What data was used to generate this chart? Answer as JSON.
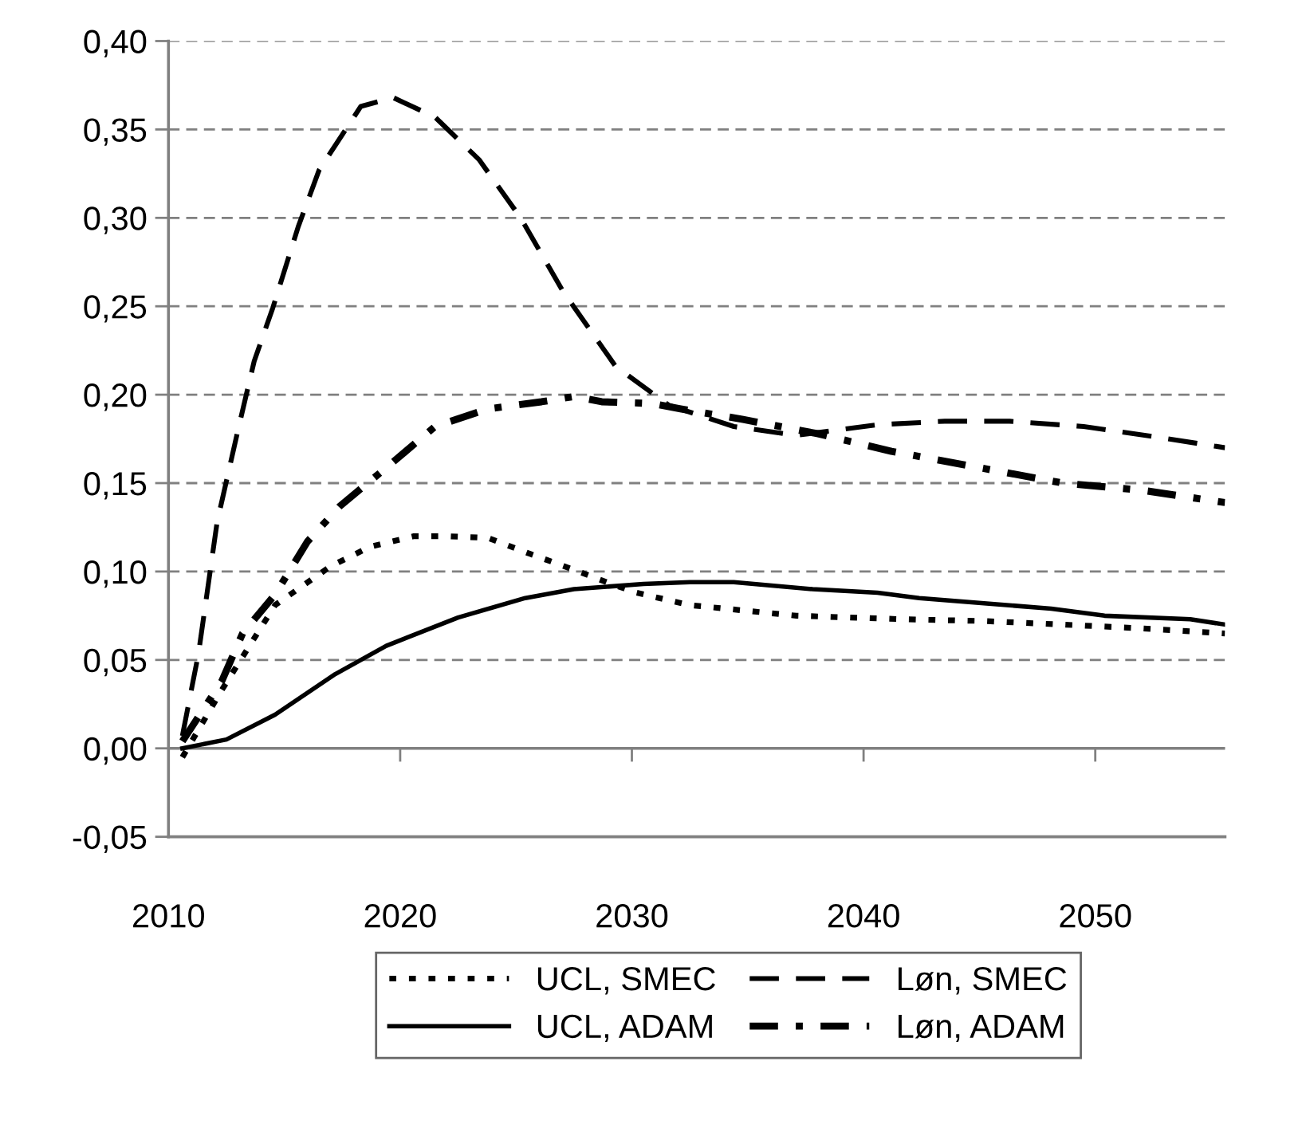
{
  "chart_data": {
    "type": "line",
    "xlim": [
      2010,
      2055.6
    ],
    "xticks": [
      2010,
      2020,
      2030,
      2040,
      2050
    ],
    "ylim": [
      -0.05,
      0.4
    ],
    "yticks": [
      {
        "value": -0.05,
        "label": "-0,05"
      },
      {
        "value": 0,
        "label": "0,00"
      },
      {
        "value": 0.05,
        "label": "0,05"
      },
      {
        "value": 0.1,
        "label": "0,10"
      },
      {
        "value": 0.15,
        "label": "0,15"
      },
      {
        "value": 0.2,
        "label": "0,20"
      },
      {
        "value": 0.25,
        "label": "0,25"
      },
      {
        "value": 0.3,
        "label": "0,30"
      },
      {
        "value": 0.35,
        "label": "0,35"
      },
      {
        "value": 0.4,
        "label": "0,40"
      }
    ],
    "grid": "y",
    "legend": "bottom",
    "ref_lines": [
      {
        "axis": "y",
        "value": 0,
        "color": "#808080",
        "line_style": "solid"
      }
    ],
    "series": [
      {
        "name": "UCL, SMEC",
        "color": "#000000",
        "line_style": "dotted",
        "x": [
          2010.6,
          2012.3,
          2014.6,
          2017,
          2018.7,
          2020.6,
          2022,
          2023.8,
          2025.6,
          2027.5,
          2028.9,
          2030.2,
          2032.5,
          2037.1,
          2041.7,
          2045.2,
          2048.6,
          2051.8,
          2055.6
        ],
        "values": [
          -0.005,
          0.033,
          0.081,
          0.103,
          0.114,
          0.12,
          0.12,
          0.119,
          0.11,
          0.101,
          0.094,
          0.088,
          0.081,
          0.075,
          0.073,
          0.072,
          0.07,
          0.068,
          0.065
        ]
      },
      {
        "name": "UCL, ADAM",
        "color": "#000000",
        "line_style": "solid",
        "x": [
          2010.6,
          2012.5,
          2014.6,
          2017.2,
          2019.4,
          2022.5,
          2025.4,
          2027.5,
          2030.5,
          2032.5,
          2034.4,
          2037.8,
          2040.6,
          2042.4,
          2045.2,
          2048.1,
          2050.4,
          2054.1,
          2055.6
        ],
        "values": [
          0.0,
          0.005,
          0.019,
          0.042,
          0.058,
          0.074,
          0.085,
          0.09,
          0.093,
          0.094,
          0.094,
          0.09,
          0.088,
          0.085,
          0.082,
          0.079,
          0.075,
          0.073,
          0.07
        ]
      },
      {
        "name": "Løn, SMEC",
        "color": "#000000",
        "line_style": "dashed",
        "x": [
          2010.6,
          2011.3,
          2012.1,
          2013,
          2013.7,
          2014.5,
          2015.6,
          2016.5,
          2018.3,
          2019.7,
          2021.5,
          2023.4,
          2025.2,
          2027,
          2029.3,
          2031.6,
          2034.4,
          2037.1,
          2040.6,
          2043.5,
          2046.3,
          2049.5,
          2052.7,
          2055.6
        ],
        "values": [
          0.007,
          0.054,
          0.128,
          0.18,
          0.219,
          0.249,
          0.295,
          0.327,
          0.363,
          0.368,
          0.357,
          0.333,
          0.3,
          0.259,
          0.216,
          0.194,
          0.182,
          0.177,
          0.183,
          0.185,
          0.185,
          0.182,
          0.176,
          0.17
        ]
      },
      {
        "name": "Løn, ADAM",
        "color": "#000000",
        "line_style": "dashdot",
        "x": [
          2010.6,
          2012.3,
          2013.2,
          2014.6,
          2016,
          2017.4,
          2019.7,
          2021.5,
          2023.8,
          2026.1,
          2027.5,
          2028.7,
          2030.9,
          2032.1,
          2034.8,
          2038,
          2041.2,
          2044.9,
          2048.6,
          2052,
          2055.6
        ],
        "values": [
          0.004,
          0.038,
          0.065,
          0.087,
          0.117,
          0.137,
          0.162,
          0.182,
          0.192,
          0.196,
          0.199,
          0.196,
          0.195,
          0.192,
          0.186,
          0.178,
          0.168,
          0.159,
          0.15,
          0.146,
          0.139
        ]
      }
    ]
  }
}
